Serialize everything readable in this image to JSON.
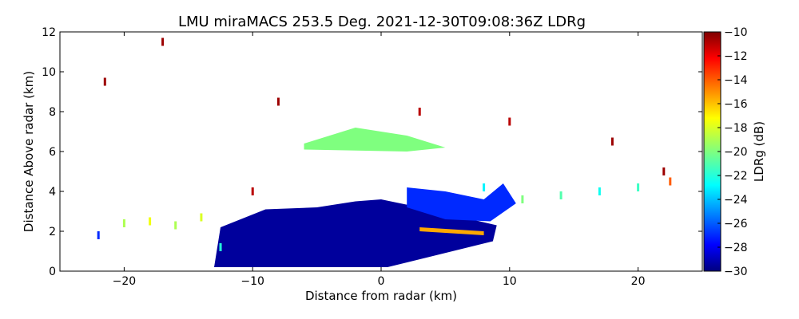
{
  "chart_data": {
    "type": "heatmap",
    "title": "LMU miraMACS 253.5 Deg. 2021-12-30T09:08:36Z  LDRg",
    "xlabel": "Distance from radar (km)",
    "ylabel": "Distance Above radar  (km)",
    "xlim": [
      -25,
      25
    ],
    "ylim": [
      0,
      12
    ],
    "xticks": [
      -20,
      -10,
      0,
      10,
      20
    ],
    "yticks": [
      0,
      2,
      4,
      6,
      8,
      10,
      12
    ],
    "colorbar": {
      "label": "LDRg (dB)",
      "range": [
        -30,
        -10
      ],
      "ticks": [
        -10,
        -12,
        -14,
        -16,
        -18,
        -20,
        -22,
        -24,
        -26,
        -28,
        -30
      ],
      "colormap": "jet"
    },
    "regions": [
      {
        "name": "low-ldr-precipitation",
        "ldr_db": -29.5,
        "polygon": [
          [
            -13,
            0.2
          ],
          [
            -12.5,
            2.2
          ],
          [
            -9,
            3.1
          ],
          [
            -5,
            3.2
          ],
          [
            -2,
            3.5
          ],
          [
            0,
            3.6
          ],
          [
            3,
            3.2
          ],
          [
            7,
            2.6
          ],
          [
            9,
            2.3
          ],
          [
            8.7,
            1.5
          ],
          [
            0.5,
            0.2
          ]
        ]
      },
      {
        "name": "ice-layer-upper-right",
        "ldr_db": -27.0,
        "polygon": [
          [
            2,
            4.2
          ],
          [
            5,
            4.0
          ],
          [
            8,
            3.6
          ],
          [
            9.5,
            4.4
          ],
          [
            10.5,
            3.4
          ],
          [
            8.5,
            2.5
          ],
          [
            5,
            2.6
          ],
          [
            2,
            3.2
          ]
        ]
      },
      {
        "name": "melting-layer-band",
        "ldr_db": -15.5,
        "polygon": [
          [
            3,
            2.2
          ],
          [
            8,
            2.0
          ],
          [
            8,
            1.8
          ],
          [
            3,
            2.0
          ]
        ]
      },
      {
        "name": "mid-level-layer",
        "ldr_db": -20.0,
        "polygon": [
          [
            -6,
            6.4
          ],
          [
            -2,
            7.2
          ],
          [
            2,
            6.8
          ],
          [
            5,
            6.2
          ],
          [
            2,
            6.0
          ],
          [
            -6,
            6.1
          ]
        ]
      }
    ],
    "scatter_points": [
      {
        "x": -22.0,
        "y": 1.8,
        "ldr_db": -27.0
      },
      {
        "x": -20.0,
        "y": 2.4,
        "ldr_db": -19.0
      },
      {
        "x": -18.0,
        "y": 2.5,
        "ldr_db": -17.5
      },
      {
        "x": -16.0,
        "y": 2.3,
        "ldr_db": -19.0
      },
      {
        "x": -14.0,
        "y": 2.7,
        "ldr_db": -18.0
      },
      {
        "x": -12.5,
        "y": 1.2,
        "ldr_db": -22.0
      },
      {
        "x": -10.0,
        "y": 4.0,
        "ldr_db": -11.0
      },
      {
        "x": 8.0,
        "y": 4.2,
        "ldr_db": -23.0
      },
      {
        "x": 11.0,
        "y": 3.6,
        "ldr_db": -20.0
      },
      {
        "x": 14.0,
        "y": 3.8,
        "ldr_db": -21.0
      },
      {
        "x": 17.0,
        "y": 4.0,
        "ldr_db": -22.5
      },
      {
        "x": 20.0,
        "y": 4.2,
        "ldr_db": -21.5
      },
      {
        "x": 22.5,
        "y": 4.5,
        "ldr_db": -14.0
      },
      {
        "x": -21.5,
        "y": 9.5,
        "ldr_db": -10.5
      },
      {
        "x": -17.0,
        "y": 11.5,
        "ldr_db": -10.5
      },
      {
        "x": -8.0,
        "y": 8.5,
        "ldr_db": -10.5
      },
      {
        "x": 3.0,
        "y": 8.0,
        "ldr_db": -11.0
      },
      {
        "x": 10.0,
        "y": 7.5,
        "ldr_db": -11.0
      },
      {
        "x": 18.0,
        "y": 6.5,
        "ldr_db": -10.5
      },
      {
        "x": 22.0,
        "y": 5.0,
        "ldr_db": -10.5
      }
    ]
  },
  "colors": {
    "background": "#ffffff",
    "plot_background": "#ffffff",
    "axis": "#000000"
  }
}
